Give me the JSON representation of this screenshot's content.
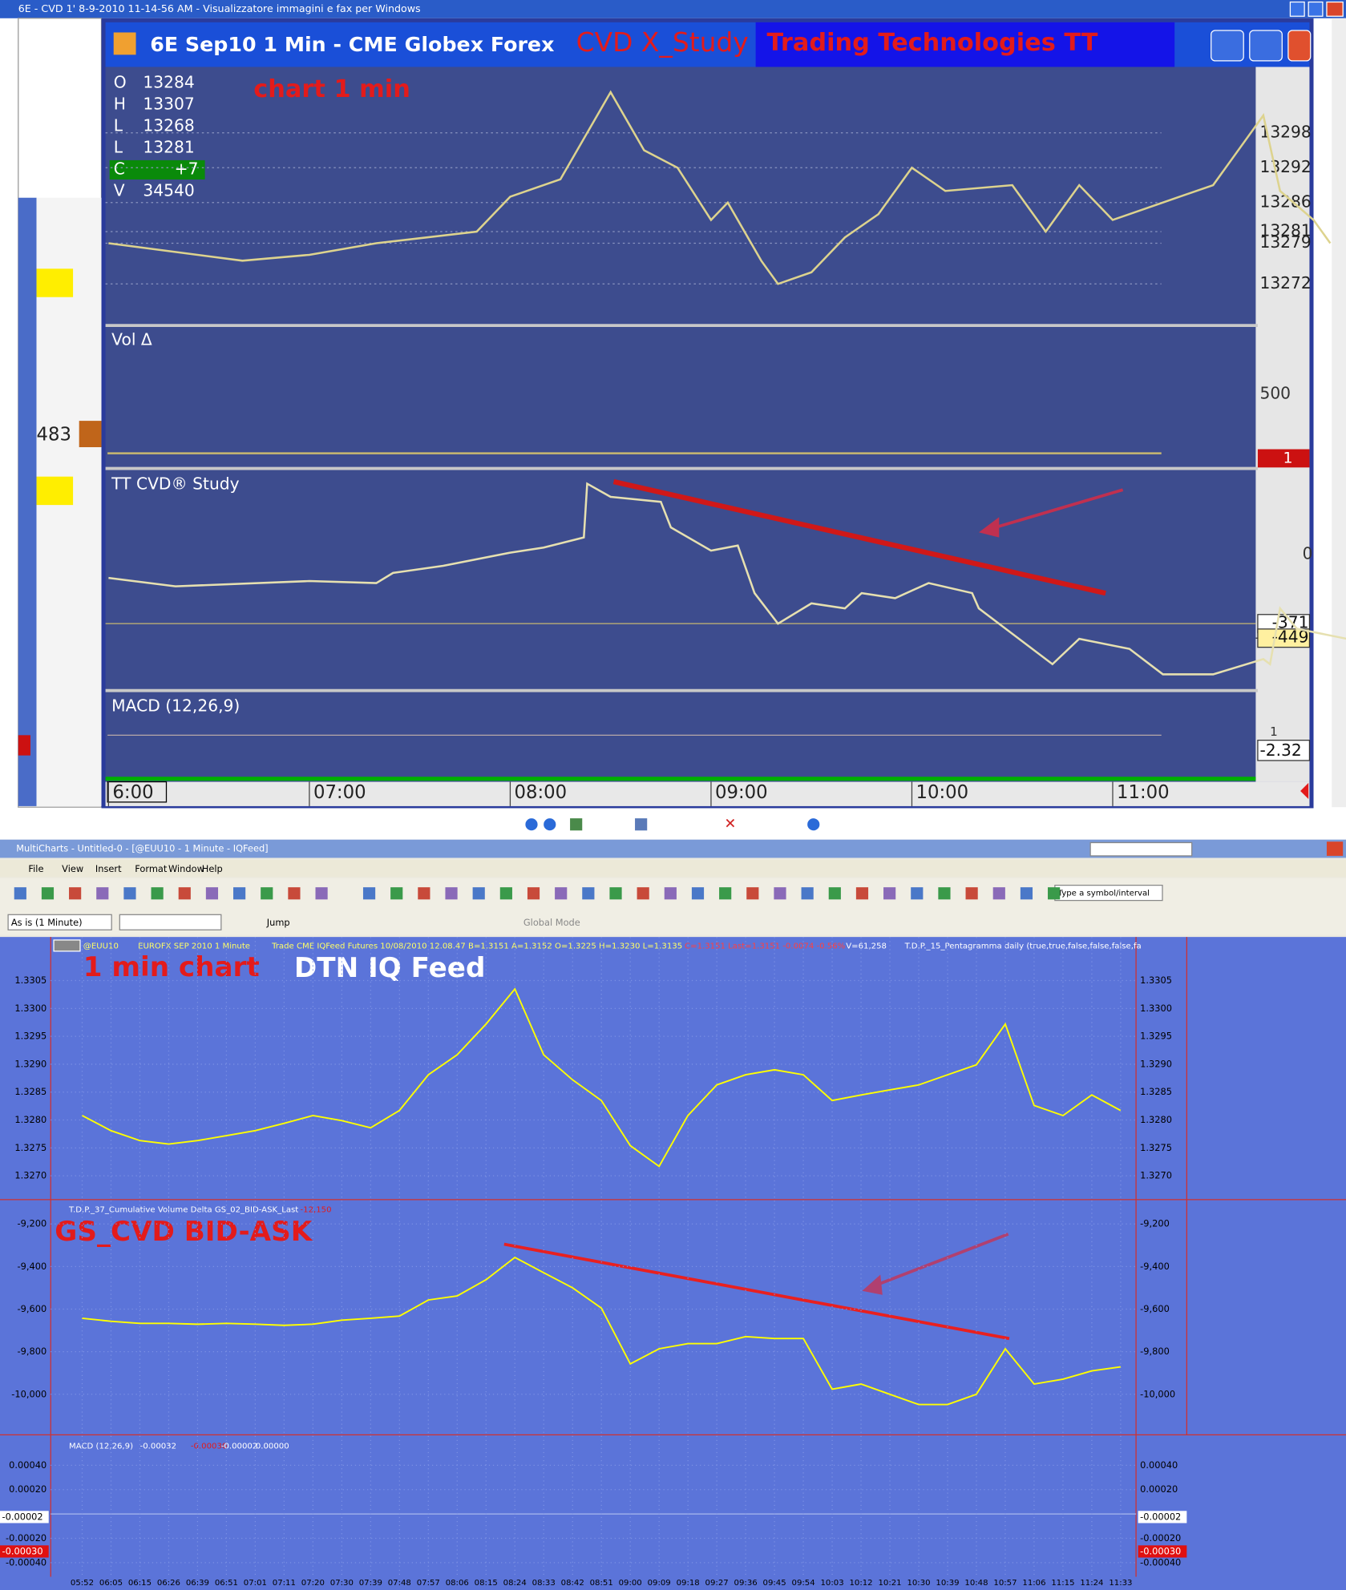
{
  "viewer": {
    "title": "6E - CVD 1' 8-9-2010 11-14-56 AM - Visualizzatore immagini e fax per Windows",
    "side_value": "483"
  },
  "tt": {
    "title": "6E Sep10 1 Min - CME Globex Forex",
    "annotation": "CVD  X_Study",
    "banner": "Trading Technologies TT",
    "chart_label": "chart 1 min",
    "ohlc": [
      {
        "key": "O",
        "text": "13284"
      },
      {
        "key": "H",
        "text": "13307"
      },
      {
        "key": "L",
        "text": "13268"
      },
      {
        "key": "L",
        "text": "13281"
      },
      {
        "key": "C",
        "text": "+7"
      },
      {
        "key": "V",
        "text": "34540"
      }
    ],
    "panels": [
      "Vol Δ",
      "TT CVD® Study",
      "MACD (12,26,9)"
    ],
    "vol_tick": "500",
    "vol_last": "1",
    "cvd_zero": "0",
    "macd_last": "-2.32",
    "macd_mark": "1",
    "time_labels": [
      "6:00",
      "07:00",
      "08:00",
      "09:00",
      "10:00",
      "11:00"
    ],
    "price": {
      "yticks": [
        13298,
        13292,
        13286,
        13281,
        13279,
        13272
      ],
      "x": [
        0,
        40,
        60,
        80,
        110,
        120,
        135,
        145,
        150,
        160,
        170,
        180,
        185,
        195,
        200,
        210,
        220,
        230,
        240,
        250,
        270,
        280,
        290,
        300,
        320,
        330,
        345,
        350,
        360,
        365
      ],
      "values": [
        13279,
        13276,
        13277,
        13279,
        13281,
        13287,
        13290,
        13300,
        13305,
        13295,
        13292,
        13283,
        13286,
        13276,
        13272,
        13274,
        13280,
        13284,
        13292,
        13288,
        13289,
        13281,
        13289,
        13283,
        13287,
        13289,
        13301,
        13288,
        13283,
        13279
      ]
    },
    "cvd": {
      "yticks": [
        -371,
        -449
      ],
      "x": [
        0,
        20,
        60,
        80,
        85,
        100,
        120,
        130,
        142,
        143,
        150,
        165,
        168,
        180,
        188,
        193,
        200,
        210,
        220,
        225,
        235,
        245,
        258,
        260,
        282,
        290,
        305,
        315,
        330,
        345,
        347,
        350,
        355,
        370
      ],
      "values": [
        -125,
        -170,
        -142,
        -153,
        -98,
        -60,
        11,
        38,
        93,
        382,
        311,
        284,
        147,
        22,
        49,
        -207,
        -371,
        -262,
        -289,
        -207,
        -234,
        -153,
        -207,
        -289,
        -589,
        -453,
        -507,
        -644,
        -644,
        -562,
        -589,
        -289,
        -398,
        -453
      ]
    }
  },
  "mc": {
    "title": "MultiCharts - Untitled-0 - [@EUU10 - 1 Minute - IQFeed]",
    "menu": [
      "File",
      "View",
      "Insert",
      "Format",
      "Window",
      "Help"
    ],
    "interval": "As is (1 Minute)",
    "jump": "Jump",
    "global_mode": "Global Mode",
    "symbol_box": "Type a symbol/interval",
    "header": [
      "@EUU10",
      "EUROFX SEP 2010 1 Minute",
      "Trade  CME  IQFeed  Futures  10/08/2010 12.08.47  B=1.3151  A=1.3152  O=1.3225  H=1.3230  L=1.3135",
      "C=1.3151  Last=1.3151  -0.0074  -0.56%",
      "V=61,258",
      "T.D.P._15_Pentagramma daily  (true,true,false,false,false,fa"
    ],
    "annotation_chart": "1 min chart",
    "annotation_feed": "DTN  IQ Feed",
    "annotation_cvd": "GS_CVD   BID-ASK",
    "cvd_header": "T.D.P._37_Cumulative Volume Delta GS_02_BID-ASK_Last",
    "cvd_last": "-12,150",
    "macd_header": [
      "MACD  (12,26,9)",
      "-0.00032",
      "-0.00030",
      "-0.00002",
      "0.00000"
    ],
    "macd_marks": [
      "-0.00002",
      "-0.00030"
    ],
    "categories": [
      "05:52",
      "06:05",
      "06:15",
      "06:26",
      "06:39",
      "06:51",
      "07:01",
      "07:11",
      "07:20",
      "07:30",
      "07:39",
      "07:48",
      "07:57",
      "08:06",
      "08:15",
      "08:24",
      "08:33",
      "08:42",
      "08:51",
      "09:00",
      "09:09",
      "09:18",
      "09:27",
      "09:36",
      "09:45",
      "09:54",
      "10:03",
      "10:12",
      "10:21",
      "10:30",
      "10:39",
      "10:48",
      "10:57",
      "11:06",
      "11:15",
      "11:24",
      "11:33"
    ],
    "price": {
      "yticks": [
        1.3305,
        {
          "value": 1.33,
          "label": "1.3300"
        },
        1.3295,
        {
          "value": 1.329,
          "label": "1.3290"
        },
        1.3285,
        {
          "value": 1.328,
          "label": "1.3280"
        },
        1.3275,
        {
          "value": 1.327,
          "label": "1.3270"
        }
      ],
      "values": [
        1.32808,
        1.32781,
        1.32763,
        1.32757,
        1.32763,
        1.32772,
        1.32781,
        1.32794,
        1.32808,
        1.32799,
        1.32786,
        1.32817,
        1.32881,
        1.32917,
        1.32972,
        1.33035,
        1.32917,
        1.32872,
        1.32835,
        1.32754,
        1.32717,
        1.32808,
        1.32863,
        1.32881,
        1.3289,
        1.32881,
        1.32835,
        1.32845,
        1.32854,
        1.32863,
        1.32881,
        1.32899,
        1.32972,
        1.32826,
        1.32808,
        1.32845,
        1.32817
      ]
    },
    "cvd": {
      "yticks": [
        {
          "value": -9200,
          "label": "-9,200"
        },
        {
          "value": -9400,
          "label": "-9,400"
        },
        {
          "value": -9600,
          "label": "-9,600"
        },
        {
          "value": -9800,
          "label": "-9,800"
        },
        {
          "value": -10000,
          "label": "-10,000"
        }
      ],
      "values": [
        -9643,
        -9657,
        -9667,
        -9667,
        -9671,
        -9667,
        -9671,
        -9676,
        -9671,
        -9652,
        -9643,
        -9633,
        -9557,
        -9538,
        -9462,
        -9357,
        -9429,
        -9500,
        -9595,
        -9857,
        -9786,
        -9762,
        -9762,
        -9729,
        -9738,
        -9738,
        -9976,
        -9952,
        -10000,
        -10048,
        -10048,
        -10000,
        -9786,
        -9952,
        -9929,
        -9890,
        -9871
      ]
    },
    "macd": {
      "yticks": [
        {
          "value": 0.0004,
          "label": "0.00040"
        },
        {
          "value": 0.0002,
          "label": "0.00020"
        },
        {
          "value": -0.0002,
          "label": "-0.00020"
        },
        {
          "value": -0.0004,
          "label": "-0.00040"
        }
      ]
    }
  }
}
